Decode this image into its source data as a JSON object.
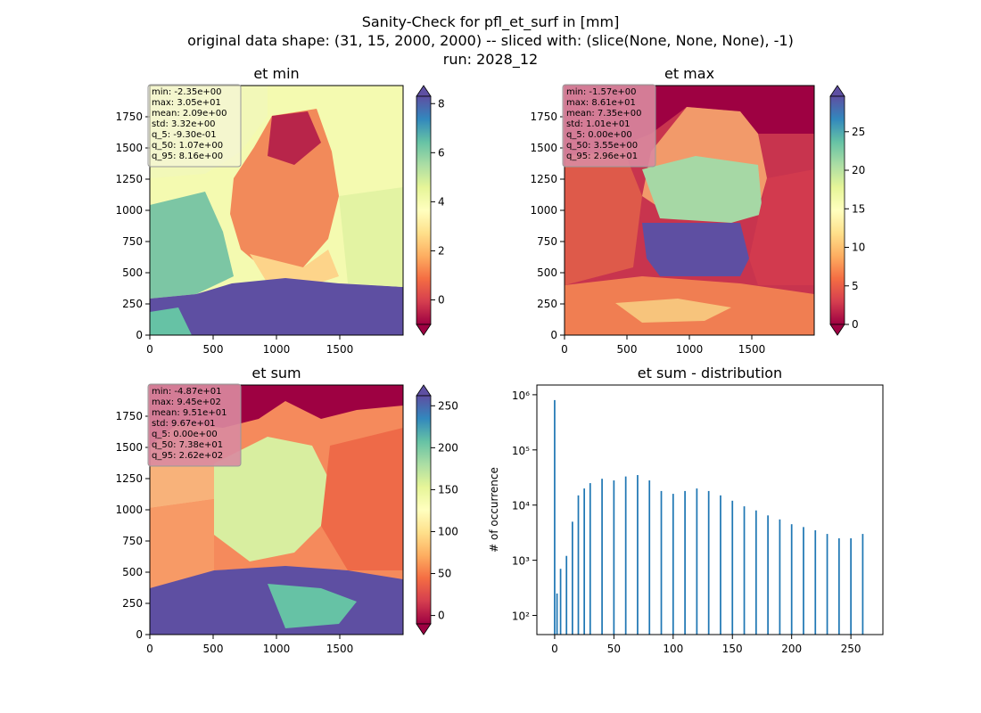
{
  "suptitle": [
    "Sanity-Check for pfl_et_surf in [mm]",
    "original data shape: (31, 15, 2000, 2000) -- sliced with: (slice(None, None, None), -1)",
    "run: 2028_12"
  ],
  "colors": {
    "bar": "#1f77b4",
    "spectral": [
      "#9e0142",
      "#d53e4f",
      "#f46d43",
      "#fdae61",
      "#fee08b",
      "#ffffbf",
      "#e6f598",
      "#abdda4",
      "#66c2a5",
      "#3288bd",
      "#5e4fa2"
    ],
    "statsbox_light": "#f5f5dc",
    "statsbox_pink": "#d98aa0"
  },
  "chart_data": [
    {
      "type": "heatmap",
      "title": "et min",
      "xlabel": "",
      "ylabel": "",
      "xlim": [
        0,
        2000
      ],
      "ylim": [
        0,
        2000
      ],
      "xticks": [
        "0",
        "500",
        "1000",
        "1500"
      ],
      "yticks": [
        "0",
        "250",
        "500",
        "750",
        "1000",
        "1250",
        "1500",
        "1750"
      ],
      "colorbar": {
        "vmin": -1.0,
        "vmax": 8.3,
        "ticks": [
          "0",
          "2",
          "4",
          "6",
          "8"
        ],
        "tick_values": [
          0,
          2,
          4,
          6,
          8
        ],
        "colormap": "Spectral",
        "extend": "both"
      },
      "stats": [
        "min: -2.35e+00",
        "max: 3.05e+01",
        "mean: 2.09e+00",
        "std: 3.32e+00",
        "q_5: -9.30e-01",
        "q_50: 1.07e+00",
        "q_95: 8.16e+00"
      ],
      "statsbox": "light"
    },
    {
      "type": "heatmap",
      "title": "et max",
      "xlabel": "",
      "ylabel": "",
      "xlim": [
        0,
        2000
      ],
      "ylim": [
        0,
        2000
      ],
      "xticks": [
        "0",
        "500",
        "1000",
        "1500"
      ],
      "yticks": [
        "0",
        "250",
        "500",
        "750",
        "1000",
        "1250",
        "1500",
        "1750"
      ],
      "colorbar": {
        "vmin": 0,
        "vmax": 29.6,
        "ticks": [
          "0",
          "5",
          "10",
          "15",
          "20",
          "25"
        ],
        "tick_values": [
          0,
          5,
          10,
          15,
          20,
          25
        ],
        "colormap": "Spectral",
        "extend": "both"
      },
      "stats": [
        "min: -1.57e+00",
        "max: 8.61e+01",
        "mean: 7.35e+00",
        "std: 1.01e+01",
        "q_5: 0.00e+00",
        "q_50: 3.55e+00",
        "q_95: 2.96e+01"
      ],
      "statsbox": "pink"
    },
    {
      "type": "heatmap",
      "title": "et sum",
      "xlabel": "",
      "ylabel": "",
      "xlim": [
        0,
        2000
      ],
      "ylim": [
        0,
        2000
      ],
      "xticks": [
        "0",
        "500",
        "1000",
        "1500"
      ],
      "yticks": [
        "0",
        "250",
        "500",
        "750",
        "1000",
        "1250",
        "1500",
        "1750"
      ],
      "colorbar": {
        "vmin": -10,
        "vmax": 262,
        "ticks": [
          "0",
          "50",
          "100",
          "150",
          "200",
          "250"
        ],
        "tick_values": [
          0,
          50,
          100,
          150,
          200,
          250
        ],
        "colormap": "Spectral",
        "extend": "both"
      },
      "stats": [
        "min: -4.87e+01",
        "max: 9.45e+02",
        "mean: 9.51e+01",
        "std: 9.67e+01",
        "q_5: 0.00e+00",
        "q_50: 7.38e+01",
        "q_95: 2.62e+02"
      ],
      "statsbox": "pink"
    },
    {
      "type": "bar",
      "title": "et sum - distribution",
      "xlabel": "",
      "ylabel": "# of occurrence",
      "yscale": "log",
      "xlim": [
        -15,
        277
      ],
      "ylim": [
        45,
        1500000
      ],
      "xticks": [
        "0",
        "50",
        "100",
        "150",
        "200",
        "250"
      ],
      "xtick_values": [
        0,
        50,
        100,
        150,
        200,
        250
      ],
      "yticks": [
        "10²",
        "10³",
        "10⁴",
        "10⁵",
        "10⁶"
      ],
      "ytick_values": [
        100,
        1000,
        10000,
        100000,
        1000000
      ],
      "bin_width": 1.3,
      "x": [
        0,
        2,
        5,
        10,
        15,
        20,
        25,
        30,
        40,
        50,
        60,
        70,
        80,
        90,
        100,
        110,
        120,
        130,
        140,
        150,
        160,
        170,
        180,
        190,
        200,
        210,
        220,
        230,
        240,
        250,
        260
      ],
      "values": [
        800000,
        250,
        700,
        1200,
        5000,
        15000,
        20000,
        25000,
        30000,
        28000,
        33000,
        35000,
        28000,
        18000,
        16000,
        18000,
        20000,
        18000,
        15000,
        12000,
        9500,
        8000,
        6500,
        5500,
        4500,
        4000,
        3500,
        3000,
        2500,
        2500,
        3000
      ]
    }
  ]
}
